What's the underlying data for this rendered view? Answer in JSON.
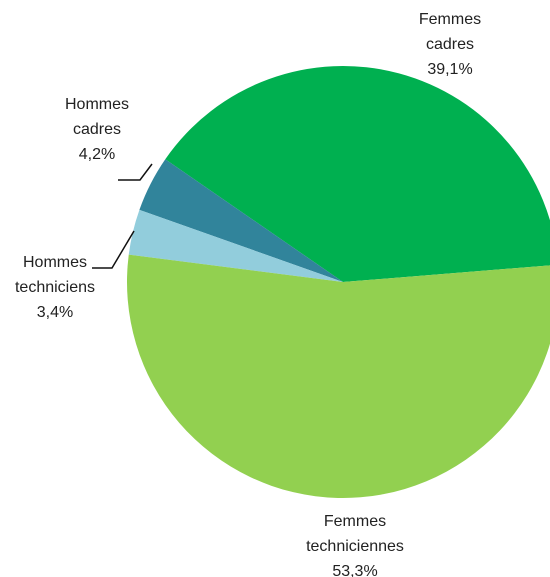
{
  "chart_data": {
    "type": "pie",
    "categories": [
      "Femmes cadres",
      "Hommes cadres",
      "Hommes techniciens",
      "Femmes techniciennes"
    ],
    "values": [
      39.1,
      4.2,
      3.4,
      53.3
    ],
    "value_labels": [
      "39,1%",
      "4,2%",
      "3,4%",
      "53,3%"
    ],
    "colors": [
      "#00b050",
      "#31849b",
      "#92cddc",
      "#92d050"
    ]
  }
}
